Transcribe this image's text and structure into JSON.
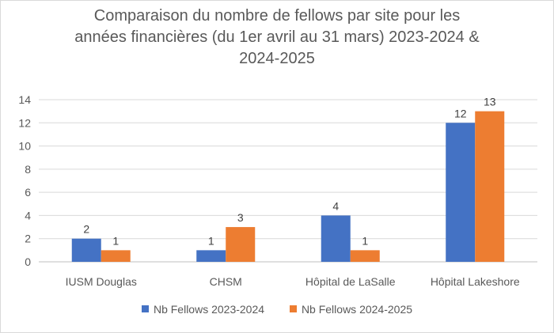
{
  "chart_data": {
    "type": "bar",
    "title_lines": [
      "Comparaison du nombre de fellows par site pour les",
      "années financières (du 1er avril au 31 mars) 2023-2024 &",
      "2024-2025"
    ],
    "categories": [
      "IUSM Douglas",
      "CHSM",
      "Hôpital de LaSalle",
      "Hôpital Lakeshore"
    ],
    "series": [
      {
        "name": "Nb Fellows 2023-2024",
        "values": [
          2,
          1,
          4,
          12
        ],
        "color": "#4472c4"
      },
      {
        "name": "Nb Fellows 2024-2025",
        "values": [
          1,
          3,
          1,
          13
        ],
        "color": "#ed7d31"
      }
    ],
    "yticks": [
      "0",
      "2",
      "4",
      "6",
      "8",
      "10",
      "12",
      "14"
    ],
    "ylim": [
      0,
      14
    ],
    "grid": true,
    "legend_position": "bottom",
    "xlabel": "",
    "ylabel": ""
  }
}
